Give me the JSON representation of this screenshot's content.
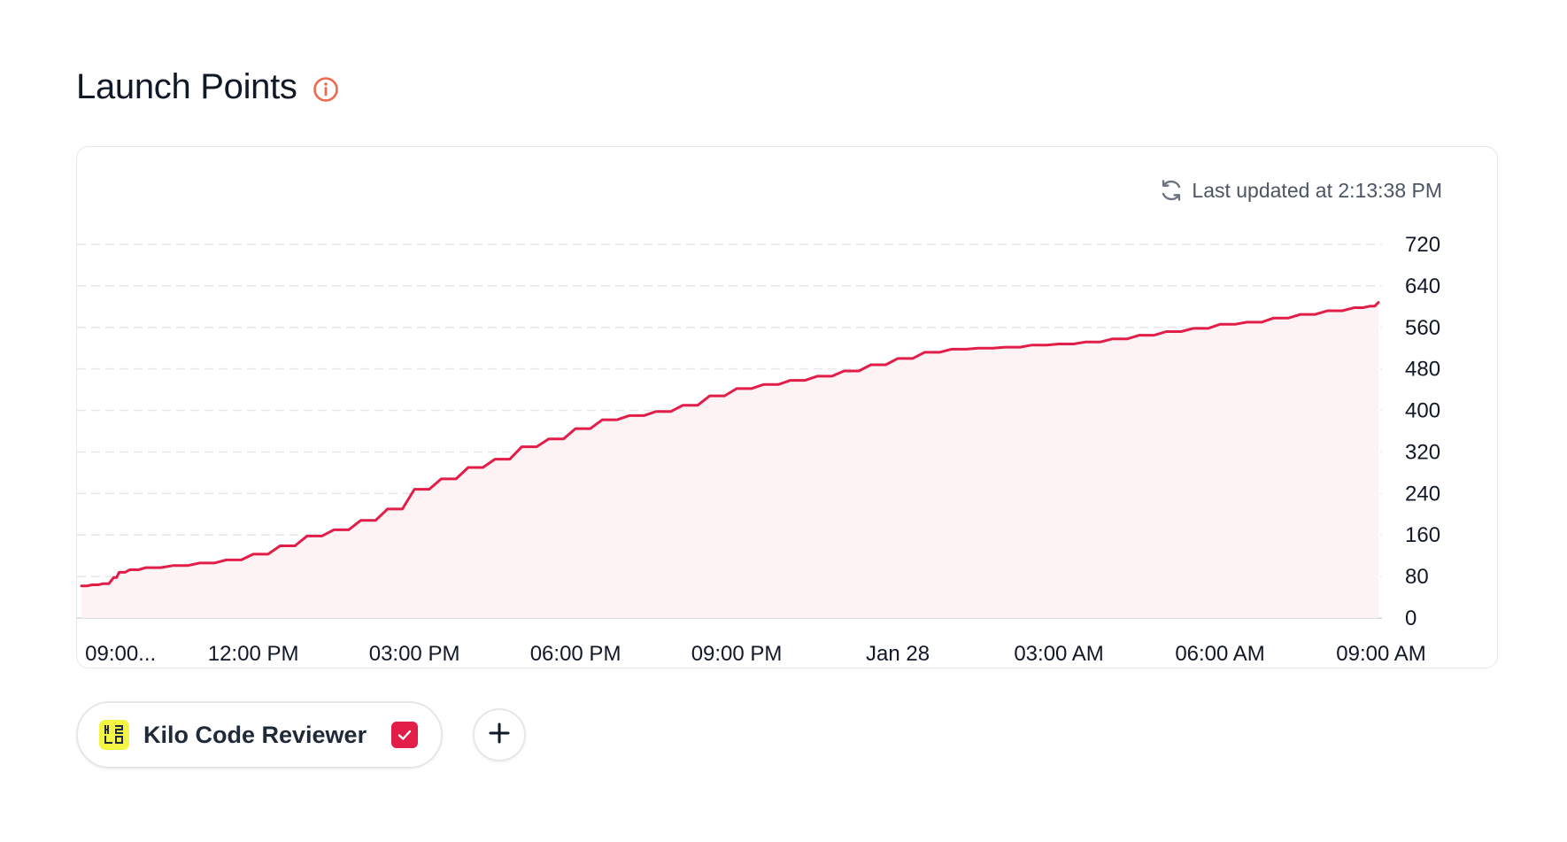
{
  "page": {
    "title": "Launch Points",
    "last_updated": "Last updated at 2:13:38 PM"
  },
  "icons": {
    "info": "info-icon",
    "refresh": "refresh-icon",
    "logo": "kilo-logo-icon",
    "check": "check-icon",
    "add": "plus-icon"
  },
  "colors": {
    "accent": "#e11d48",
    "info_icon": "#ef6a4c",
    "area_fill": "#fdf2f4",
    "grid": "#e5e7eb",
    "logo_bg": "#f3f542"
  },
  "legend": {
    "chips": [
      {
        "label": "Kilo Code Reviewer",
        "checked": true
      }
    ]
  },
  "chart_data": {
    "type": "area",
    "title": "",
    "xlabel": "",
    "ylabel": "",
    "ylim": [
      0,
      720
    ],
    "y_ticks": [
      0,
      80,
      160,
      240,
      320,
      400,
      480,
      560,
      640,
      720
    ],
    "y_axis_side": "right",
    "grid": true,
    "x_ticks": [
      {
        "x": 9.0,
        "label": "09:00..."
      },
      {
        "x": 12.0,
        "label": "12:00 PM"
      },
      {
        "x": 15.0,
        "label": "03:00 PM"
      },
      {
        "x": 18.0,
        "label": "06:00 PM"
      },
      {
        "x": 21.0,
        "label": "09:00 PM"
      },
      {
        "x": 24.0,
        "label": "Jan 28"
      },
      {
        "x": 27.0,
        "label": "03:00 AM"
      },
      {
        "x": 30.0,
        "label": "06:00 AM"
      },
      {
        "x": 33.0,
        "label": "09:00 AM"
      }
    ],
    "xlim": [
      8.8,
      33.0
    ],
    "series": [
      {
        "name": "Kilo Code Reviewer",
        "x": [
          8.8,
          9.0,
          9.2,
          9.4,
          9.5,
          9.7,
          10.0,
          10.5,
          11.0,
          11.5,
          12.0,
          12.5,
          13.0,
          13.5,
          14.0,
          14.5,
          15.0,
          15.5,
          16.0,
          16.5,
          17.0,
          17.5,
          18.0,
          18.5,
          19.0,
          19.5,
          20.0,
          20.5,
          21.0,
          21.5,
          22.0,
          22.5,
          23.0,
          23.5,
          24.0,
          24.5,
          25.0,
          25.5,
          26.0,
          26.5,
          27.0,
          27.5,
          28.0,
          28.5,
          29.0,
          29.5,
          30.0,
          30.5,
          31.0,
          31.5,
          32.0,
          32.5,
          32.8,
          32.95
        ],
        "values": [
          62,
          64,
          66,
          78,
          88,
          93,
          97,
          101,
          106,
          112,
          123,
          139,
          158,
          170,
          188,
          210,
          248,
          268,
          290,
          306,
          330,
          345,
          365,
          382,
          390,
          398,
          410,
          428,
          442,
          450,
          458,
          466,
          476,
          488,
          500,
          512,
          518,
          520,
          522,
          526,
          528,
          532,
          538,
          545,
          552,
          558,
          566,
          570,
          578,
          585,
          592,
          598,
          601,
          608
        ]
      }
    ]
  }
}
